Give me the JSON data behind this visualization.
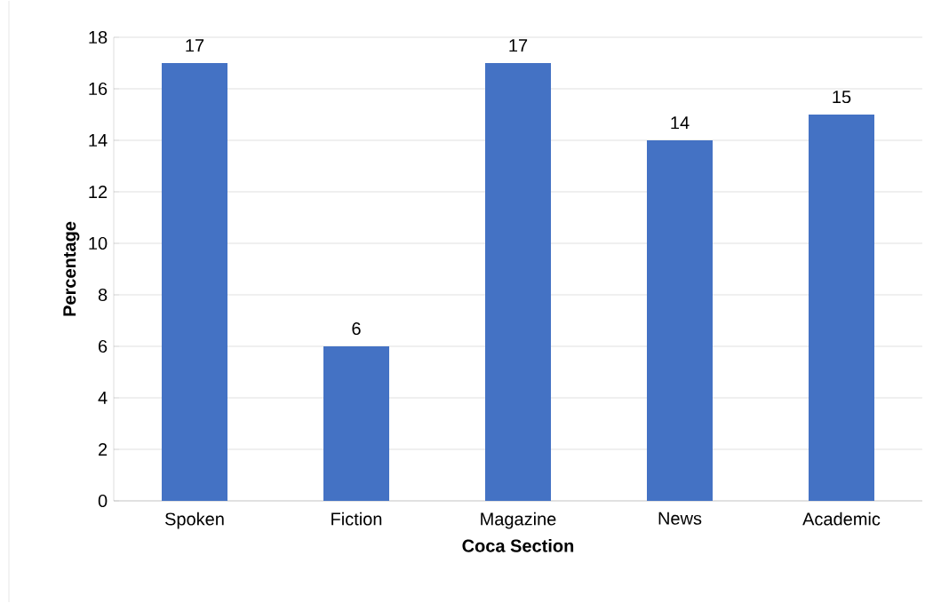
{
  "chart_data": {
    "type": "bar",
    "xlabel": "Coca Section",
    "ylabel": "Percentage",
    "categories": [
      "Spoken",
      "Fiction",
      "Magazine",
      "News",
      "Academic"
    ],
    "values": [
      17,
      6,
      17,
      14,
      15
    ],
    "color": "#4472c4",
    "ylim": [
      0,
      18
    ],
    "yticks": [
      0,
      2,
      4,
      6,
      8,
      10,
      12,
      14,
      16,
      18
    ],
    "grid": "y",
    "data_labels": true
  }
}
